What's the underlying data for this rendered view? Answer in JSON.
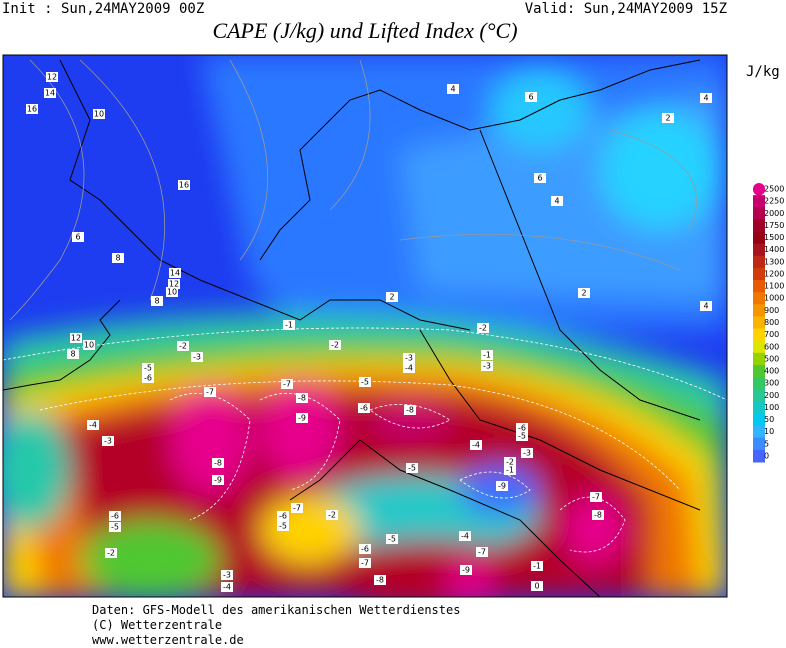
{
  "header": {
    "init": "Init : Sun,24MAY2009 00Z",
    "valid": "Valid: Sun,24MAY2009 15Z",
    "title": "CAPE (J/kg) und Lifted Index (°C)"
  },
  "colorbar": {
    "unit": "J/kg",
    "levels": [
      2500,
      2250,
      2000,
      1750,
      1500,
      1400,
      1300,
      1200,
      1100,
      1000,
      900,
      800,
      700,
      600,
      500,
      400,
      300,
      200,
      100,
      50,
      10,
      5,
      0
    ],
    "colors": [
      "#e6008c",
      "#c8006e",
      "#b40050",
      "#a00028",
      "#960014",
      "#a8141e",
      "#be2814",
      "#d23c0a",
      "#e65a00",
      "#f07800",
      "#f59600",
      "#fab400",
      "#ffd200",
      "#dce600",
      "#96d200",
      "#50c832",
      "#32c864",
      "#28c896",
      "#14c8c8",
      "#00c8f0",
      "#32b4ff",
      "#3c8cff",
      "#4664ff"
    ]
  },
  "contour_labels": [
    "12",
    "14",
    "16",
    "10",
    "16",
    "6",
    "8",
    "14",
    "12",
    "10",
    "8",
    "2",
    "2",
    "4",
    "4",
    "6",
    "4",
    "2",
    "6",
    "4",
    "-2",
    "12",
    "10",
    "8",
    "-1",
    "-2",
    "-2",
    "-3",
    "-5",
    "-6",
    "-3",
    "-4",
    "-1",
    "-3",
    "-7",
    "-5",
    "-7",
    "-8",
    "-6",
    "-8",
    "-9",
    "-4",
    "-3",
    "-8",
    "-9",
    "-4",
    "-6",
    "-5",
    "-5",
    "-3",
    "-2",
    "-1",
    "-9",
    "-7",
    "-2",
    "-6",
    "-5",
    "-6",
    "-5",
    "-2",
    "-4",
    "-6",
    "-5",
    "-7",
    "-7",
    "-8",
    "-7",
    "-8",
    "-9",
    "-3",
    "-4",
    "-1",
    "0"
  ],
  "footer": {
    "lines": [
      "Daten: GFS-Modell des amerikanischen Wetterdienstes",
      "(C) Wetterzentrale",
      "www.wetterzentrale.de"
    ]
  }
}
